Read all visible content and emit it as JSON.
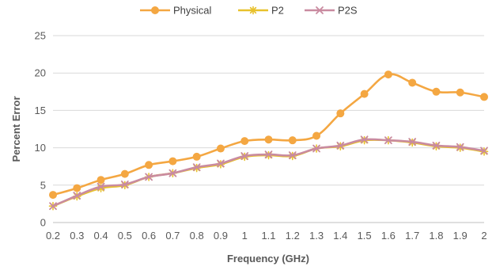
{
  "chart_data": {
    "type": "line",
    "title": "",
    "xlabel": "Frequency (GHz)",
    "ylabel": "Percent Error",
    "categories": [
      "0.2",
      "0.3",
      "0.4",
      "0.5",
      "0.6",
      "0.7",
      "0.8",
      "0.9",
      "1",
      "1.1",
      "1.2",
      "1.3",
      "1.4",
      "1.5",
      "1.6",
      "1.7",
      "1.8",
      "1.9",
      "2"
    ],
    "ylim": [
      0,
      25
    ],
    "yticks": [
      "0",
      "5",
      "10",
      "15",
      "20",
      "25"
    ],
    "grid": "horizontal",
    "legend_position": "top",
    "series": [
      {
        "name": "Physical",
        "color": "#F4A742",
        "marker": "circle",
        "values": [
          3.7,
          4.6,
          5.7,
          6.5,
          7.7,
          8.2,
          8.8,
          9.9,
          10.9,
          11.1,
          11.0,
          11.6,
          14.6,
          17.2,
          19.8,
          18.7,
          17.5,
          17.4,
          16.8
        ]
      },
      {
        "name": "P2",
        "color": "#E8C12C",
        "marker": "star",
        "values": [
          2.2,
          3.5,
          4.6,
          5.0,
          6.1,
          6.6,
          7.3,
          7.8,
          8.8,
          9.0,
          8.9,
          9.9,
          10.2,
          11.0,
          11.0,
          10.7,
          10.2,
          10.0,
          9.5
        ]
      },
      {
        "name": "P2S",
        "color": "#C98BA0",
        "marker": "x",
        "values": [
          2.2,
          3.6,
          4.8,
          5.1,
          6.1,
          6.6,
          7.4,
          7.9,
          8.9,
          9.1,
          9.0,
          9.9,
          10.3,
          11.1,
          11.0,
          10.8,
          10.3,
          10.1,
          9.6
        ]
      }
    ]
  }
}
